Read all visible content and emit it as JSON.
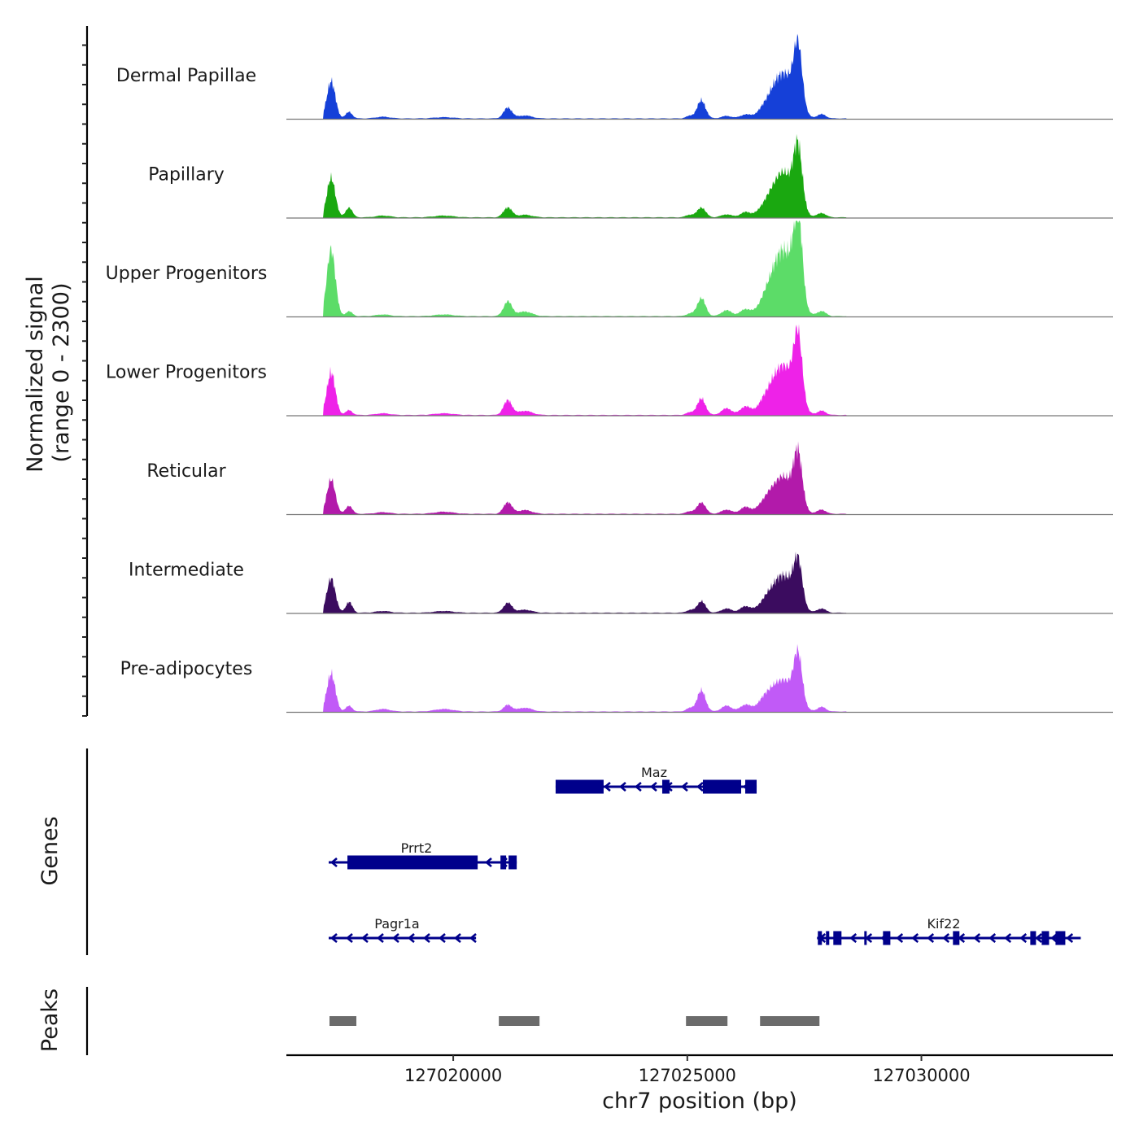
{
  "chart_data": {
    "type": "area",
    "title": "",
    "chromosome": "chr7",
    "xlabel": "chr7 position (bp)",
    "ylabel": "Normalized signal",
    "ylabel_range": "(range 0 - 2300)",
    "ylim": [
      0,
      2300
    ],
    "xlim": [
      127016436,
      127034092
    ],
    "x_ticks": [
      127020000,
      127025000,
      127030000
    ],
    "x_tick_labels": [
      "127020000",
      "127025000",
      "127030000"
    ],
    "peak_centers_bp": [
      127017392,
      127017775,
      127018500,
      127019800,
      127021165,
      127021530,
      127025052,
      127025300,
      127025840,
      127026240,
      127026670,
      127027050,
      127027365,
      127027870
    ],
    "peak_widths_bp": [
      90,
      70,
      150,
      200,
      90,
      150,
      80,
      90,
      110,
      110,
      160,
      230,
      90,
      90
    ],
    "series": [
      {
        "name": "Dermal Papillae",
        "color": "#1540d8",
        "heights": [
          880,
          155,
          40,
          30,
          255,
          70,
          60,
          430,
          60,
          90,
          180,
          1070,
          1460,
          100
        ]
      },
      {
        "name": "Papillary",
        "color": "#1aa810",
        "heights": [
          935,
          235,
          40,
          40,
          235,
          60,
          60,
          235,
          70,
          120,
          180,
          1070,
          1400,
          100
        ]
      },
      {
        "name": "Upper Progenitors",
        "color": "#5cdc68",
        "heights": [
          1600,
          115,
          40,
          40,
          350,
          110,
          60,
          430,
          140,
          160,
          280,
          1560,
          2050,
          120
        ]
      },
      {
        "name": "Lower Progenitors",
        "color": "#ee22e8",
        "heights": [
          1015,
          115,
          40,
          40,
          350,
          100,
          60,
          390,
          160,
          200,
          260,
          1170,
          1600,
          100
        ]
      },
      {
        "name": "Reticular",
        "color": "#b21aaa",
        "heights": [
          820,
          195,
          40,
          50,
          275,
          90,
          60,
          275,
          100,
          160,
          220,
          880,
          1210,
          100
        ]
      },
      {
        "name": "Intermediate",
        "color": "#3b0c5f",
        "heights": [
          820,
          255,
          40,
          40,
          235,
          70,
          60,
          275,
          100,
          150,
          200,
          880,
          1015,
          100
        ]
      },
      {
        "name": "Pre-adipocytes",
        "color": "#c15af7",
        "heights": [
          900,
          135,
          60,
          60,
          155,
          90,
          80,
          505,
          140,
          160,
          260,
          740,
          1170,
          110
        ]
      }
    ],
    "genes_label": "Genes",
    "gene_color": "#00008b",
    "genes": [
      {
        "name": "Maz",
        "strand": "-",
        "row": 0,
        "start": 127022187,
        "end": 127026481,
        "exons": [
          [
            127022187,
            127023212
          ],
          [
            127024464,
            127024620
          ],
          [
            127025333,
            127026150
          ],
          [
            127026237,
            127026481
          ]
        ]
      },
      {
        "name": "Prrt2",
        "strand": "-",
        "row": 1,
        "start": 127017340,
        "end": 127021356,
        "exons": [
          [
            127017740,
            127020522
          ],
          [
            127021009,
            127021130
          ],
          [
            127021182,
            127021356
          ]
        ]
      },
      {
        "name": "Pagr1a",
        "strand": "-",
        "row": 2,
        "start": 127017340,
        "end": 127020487,
        "exons": []
      },
      {
        "name": "Kif22",
        "strand": "-",
        "row": 2,
        "start": 127027771,
        "end": 127033404,
        "exons": [
          [
            127027788,
            127027875
          ],
          [
            127027962,
            127028032
          ],
          [
            127028119,
            127028293
          ],
          [
            127028780,
            127028832
          ],
          [
            127029180,
            127029337
          ],
          [
            127030674,
            127030813
          ],
          [
            127032326,
            127032448
          ],
          [
            127032570,
            127032727
          ],
          [
            127032865,
            127033074
          ]
        ]
      }
    ],
    "peaks_label": "Peaks",
    "peak_color": "#6b6b6b",
    "peaks": [
      [
        127017357,
        127017931
      ],
      [
        127020974,
        127021843
      ],
      [
        127024972,
        127025858
      ],
      [
        127026554,
        127027823
      ]
    ]
  }
}
